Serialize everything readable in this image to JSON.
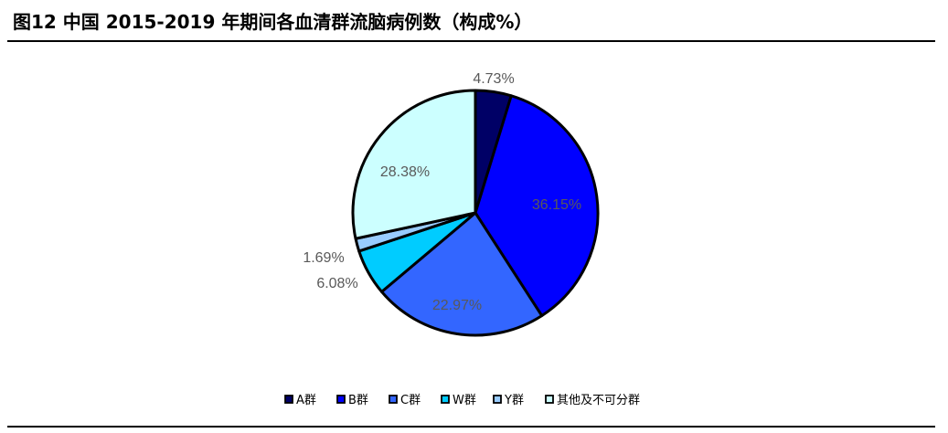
{
  "title": "图12 中国 2015-2019 年期间各血清群流脑病例数（构成%）",
  "colors": {
    "slice_border": "#000000",
    "label_text": "#595959",
    "legend_text": "#000000"
  },
  "chart_data": {
    "type": "pie",
    "title": "图12 中国 2015-2019 年期间各血清群流脑病例数（构成%）",
    "legend_position": "bottom",
    "slices": [
      {
        "name": "A群",
        "value": 4.73,
        "label": "4.73%",
        "color": "#000066"
      },
      {
        "name": "B群",
        "value": 36.15,
        "label": "36.15%",
        "color": "#0000FF"
      },
      {
        "name": "C群",
        "value": 22.97,
        "label": "22.97%",
        "color": "#3366FF"
      },
      {
        "name": "W群",
        "value": 6.08,
        "label": "6.08%",
        "color": "#00CCFF"
      },
      {
        "name": "Y群",
        "value": 1.69,
        "label": "1.69%",
        "color": "#99CCFF"
      },
      {
        "name": "其他及不可分群",
        "value": 28.38,
        "label": "28.38%",
        "color": "#CCFFFF"
      }
    ]
  }
}
